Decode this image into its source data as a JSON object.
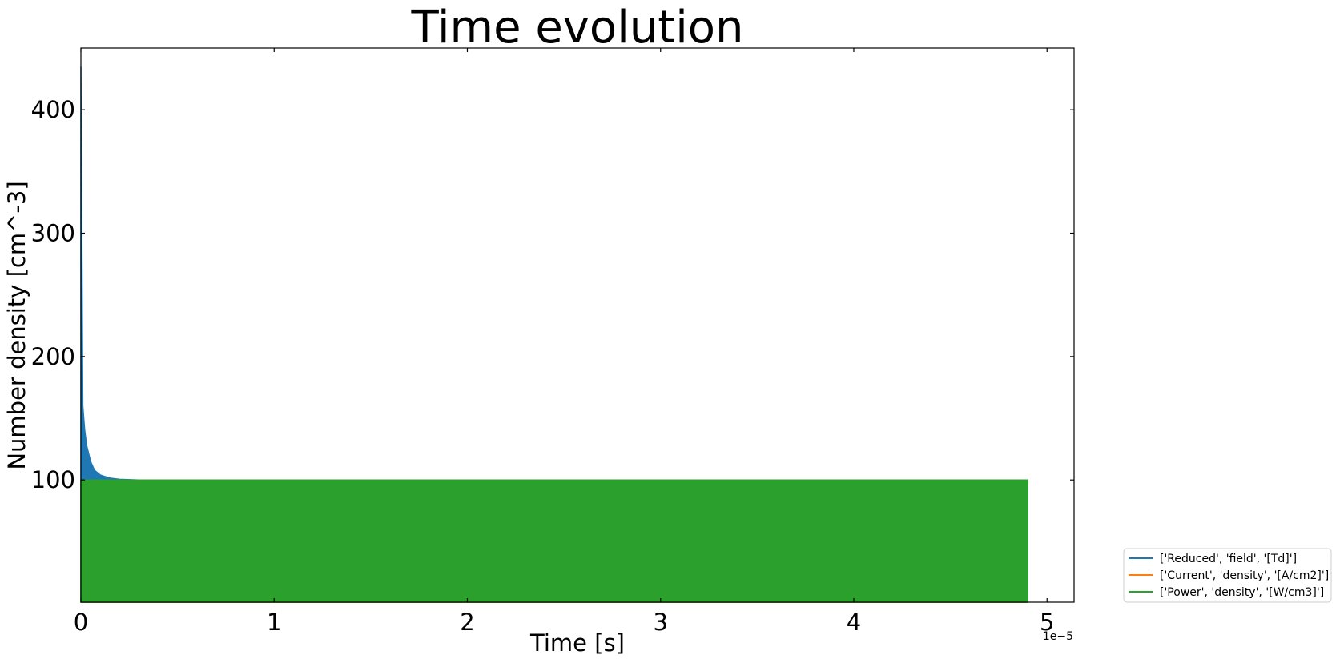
{
  "chart_data": {
    "type": "line",
    "title": "Time evolution",
    "xlabel": "Time [s]",
    "ylabel": "Number density [cm^-3]",
    "x_offset_label": "1e−5",
    "xlim": [
      0,
      5.14
    ],
    "ylim": [
      1,
      450
    ],
    "x_ticks": [
      0,
      1,
      2,
      3,
      4,
      5
    ],
    "x_tick_labels": [
      "0",
      "1",
      "2",
      "3",
      "4",
      "5"
    ],
    "y_ticks": [
      100,
      200,
      300,
      400
    ],
    "y_tick_labels": [
      "100",
      "200",
      "300",
      "400"
    ],
    "grid": false,
    "legend_position": "lower-right outside",
    "series": [
      {
        "name": "['Reduced', 'field', '[Td]']",
        "color": "#1f77b4",
        "x": [
          0,
          0.005,
          0.01,
          0.02,
          0.03,
          0.05,
          0.07,
          0.1,
          0.15,
          0.2,
          0.3,
          4.9
        ],
        "y": [
          435,
          300,
          160,
          140,
          128,
          115,
          108,
          104,
          101.5,
          100.5,
          100,
          100
        ]
      },
      {
        "name": "['Current', 'density', '[A/cm2]']",
        "color": "#ff7f0e",
        "x": [
          0,
          4.9
        ],
        "y": [
          1,
          1
        ]
      },
      {
        "name": "['Power', 'density', '[W/cm3]']",
        "color": "#2ca02c",
        "x": [
          0,
          4.9
        ],
        "y": [
          100,
          100
        ]
      }
    ]
  }
}
